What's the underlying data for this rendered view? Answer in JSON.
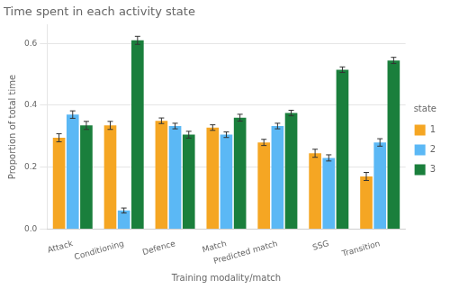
{
  "chart_data": {
    "type": "bar",
    "title": "Time spent in each activity state",
    "xlabel": "Training modality/match",
    "ylabel": "Proportion of total time",
    "categories": [
      "Attack",
      "Conditioning",
      "Defence",
      "Match",
      "Predicted match",
      "SSG",
      "Transition"
    ],
    "series": [
      {
        "name": "1",
        "color": "#F5A623",
        "values": [
          0.295,
          0.335,
          0.35,
          0.328,
          0.28,
          0.245,
          0.17
        ],
        "errors": [
          0.013,
          0.013,
          0.009,
          0.009,
          0.01,
          0.013,
          0.013
        ]
      },
      {
        "name": "2",
        "color": "#5BB8F5",
        "values": [
          0.37,
          0.06,
          0.333,
          0.305,
          0.333,
          0.23,
          0.28
        ],
        "errors": [
          0.012,
          0.008,
          0.009,
          0.009,
          0.009,
          0.01,
          0.012
        ]
      },
      {
        "name": "3",
        "color": "#1A7F3C",
        "values": [
          0.335,
          0.61,
          0.305,
          0.36,
          0.375,
          0.515,
          0.545
        ],
        "errors": [
          0.013,
          0.013,
          0.011,
          0.011,
          0.009,
          0.009,
          0.01
        ]
      }
    ],
    "ylim": [
      0.0,
      0.66
    ],
    "yticks": [
      {
        "value": 0.0,
        "label": "0.0"
      },
      0.2,
      0.4,
      0.6
    ],
    "grid": true,
    "legend": "right",
    "legend_title": "state"
  }
}
